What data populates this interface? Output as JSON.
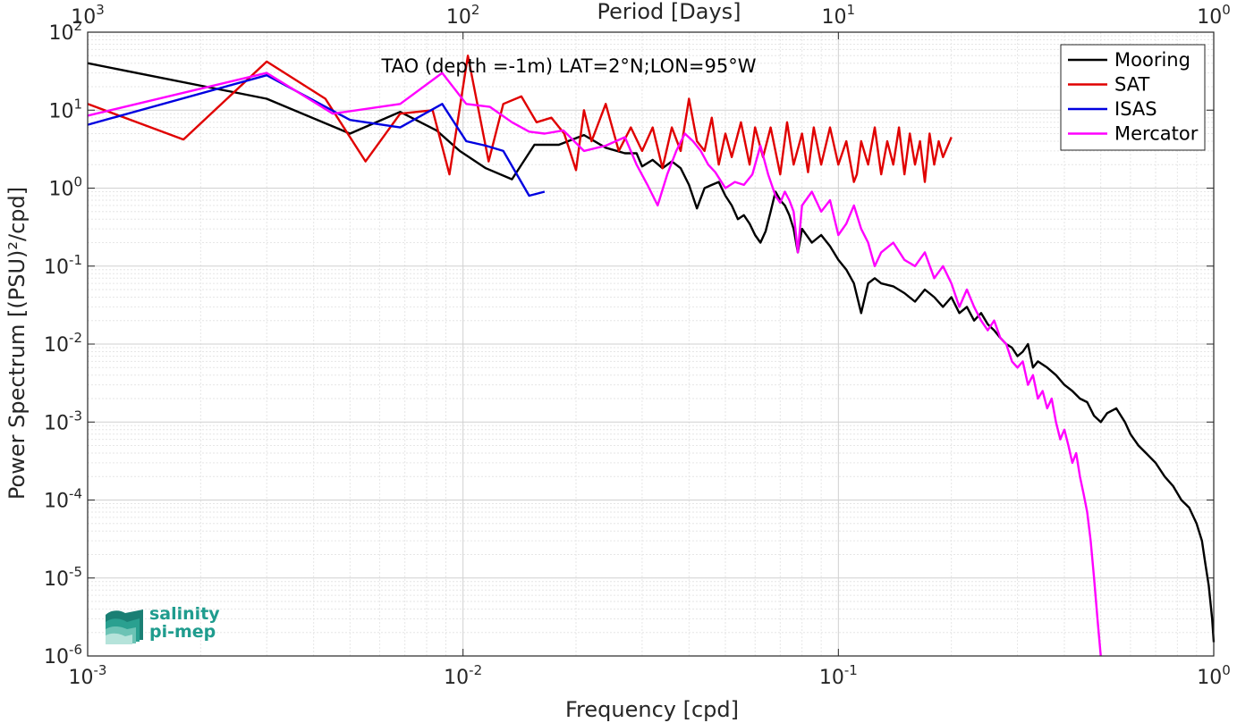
{
  "chart_data": {
    "type": "line",
    "title": "TAO (depth =-1m) LAT=2°N;LON=95°W",
    "xlabel": "Frequency [cpd]",
    "ylabel": "Power Spectrum [(PSU)²/cpd]",
    "top_xlabel": "Period [Days]",
    "xscale": "log",
    "yscale": "log",
    "xlim": [
      0.001,
      1
    ],
    "ylim": [
      1e-06,
      100
    ],
    "grid": true,
    "legend_position": "top-right",
    "x_tick_mantissa": [
      "10",
      "10",
      "10",
      "10"
    ],
    "x_tick_exponents": [
      "-3",
      "-2",
      "-1",
      "0"
    ],
    "top_tick_mantissa": [
      "10",
      "10",
      "10",
      "10"
    ],
    "top_tick_exponents": [
      "3",
      "2",
      "1",
      "0"
    ],
    "y_tick_mantissa": [
      "10",
      "10",
      "10",
      "10",
      "10",
      "10",
      "10",
      "10",
      "10"
    ],
    "y_tick_exponents": [
      "-6",
      "-5",
      "-4",
      "-3",
      "-2",
      "-1",
      "0",
      "1",
      "2"
    ],
    "series": [
      {
        "name": "Mooring",
        "color": "#000000",
        "points": [
          [
            0.001,
            40
          ],
          [
            0.003,
            14
          ],
          [
            0.005,
            5
          ],
          [
            0.0068,
            9.5
          ],
          [
            0.0085,
            5.5
          ],
          [
            0.0098,
            3
          ],
          [
            0.0115,
            1.8
          ],
          [
            0.0135,
            1.3
          ],
          [
            0.0155,
            3.6
          ],
          [
            0.018,
            3.6
          ],
          [
            0.021,
            4.8
          ],
          [
            0.024,
            3.3
          ],
          [
            0.027,
            2.8
          ],
          [
            0.029,
            2.8
          ],
          [
            0.03,
            1.9
          ],
          [
            0.032,
            2.3
          ],
          [
            0.034,
            1.8
          ],
          [
            0.036,
            2.2
          ],
          [
            0.038,
            1.8
          ],
          [
            0.04,
            1.1
          ],
          [
            0.042,
            0.55
          ],
          [
            0.044,
            1
          ],
          [
            0.046,
            1.1
          ],
          [
            0.048,
            1.2
          ],
          [
            0.05,
            0.8
          ],
          [
            0.052,
            0.6
          ],
          [
            0.054,
            0.4
          ],
          [
            0.056,
            0.45
          ],
          [
            0.058,
            0.35
          ],
          [
            0.06,
            0.25
          ],
          [
            0.062,
            0.2
          ],
          [
            0.064,
            0.28
          ],
          [
            0.066,
            0.5
          ],
          [
            0.068,
            0.9
          ],
          [
            0.07,
            0.7
          ],
          [
            0.072,
            0.6
          ],
          [
            0.074,
            0.45
          ],
          [
            0.076,
            0.3
          ],
          [
            0.078,
            0.15
          ],
          [
            0.08,
            0.3
          ],
          [
            0.085,
            0.2
          ],
          [
            0.09,
            0.25
          ],
          [
            0.095,
            0.18
          ],
          [
            0.1,
            0.12
          ],
          [
            0.105,
            0.09
          ],
          [
            0.11,
            0.06
          ],
          [
            0.115,
            0.025
          ],
          [
            0.12,
            0.06
          ],
          [
            0.125,
            0.07
          ],
          [
            0.13,
            0.06
          ],
          [
            0.14,
            0.055
          ],
          [
            0.15,
            0.045
          ],
          [
            0.16,
            0.035
          ],
          [
            0.17,
            0.05
          ],
          [
            0.18,
            0.04
          ],
          [
            0.19,
            0.03
          ],
          [
            0.2,
            0.04
          ],
          [
            0.21,
            0.025
          ],
          [
            0.22,
            0.03
          ],
          [
            0.23,
            0.02
          ],
          [
            0.24,
            0.025
          ],
          [
            0.25,
            0.018
          ],
          [
            0.26,
            0.015
          ],
          [
            0.27,
            0.012
          ],
          [
            0.28,
            0.01
          ],
          [
            0.29,
            0.009
          ],
          [
            0.3,
            0.007
          ],
          [
            0.31,
            0.008
          ],
          [
            0.32,
            0.01
          ],
          [
            0.33,
            0.005
          ],
          [
            0.34,
            0.006
          ],
          [
            0.36,
            0.005
          ],
          [
            0.38,
            0.004
          ],
          [
            0.4,
            0.003
          ],
          [
            0.42,
            0.0025
          ],
          [
            0.44,
            0.002
          ],
          [
            0.46,
            0.0018
          ],
          [
            0.48,
            0.0012
          ],
          [
            0.5,
            0.001
          ],
          [
            0.52,
            0.0013
          ],
          [
            0.55,
            0.0015
          ],
          [
            0.58,
            0.001
          ],
          [
            0.6,
            0.0007
          ],
          [
            0.63,
            0.0005
          ],
          [
            0.66,
            0.0004
          ],
          [
            0.7,
            0.0003
          ],
          [
            0.74,
            0.0002
          ],
          [
            0.78,
            0.00015
          ],
          [
            0.82,
            0.0001
          ],
          [
            0.86,
            8e-05
          ],
          [
            0.9,
            5e-05
          ],
          [
            0.93,
            3e-05
          ],
          [
            0.95,
            1.5e-05
          ],
          [
            0.97,
            8e-06
          ],
          [
            0.99,
            3e-06
          ],
          [
            1,
            1.5e-06
          ]
        ]
      },
      {
        "name": "SAT",
        "color": "#e00000",
        "points": [
          [
            0.001,
            12
          ],
          [
            0.0018,
            4.2
          ],
          [
            0.003,
            42
          ],
          [
            0.0043,
            14
          ],
          [
            0.0055,
            2.2
          ],
          [
            0.0068,
            9
          ],
          [
            0.0083,
            10
          ],
          [
            0.0092,
            1.5
          ],
          [
            0.0103,
            50
          ],
          [
            0.0117,
            2.2
          ],
          [
            0.0128,
            12
          ],
          [
            0.0143,
            15
          ],
          [
            0.0157,
            7
          ],
          [
            0.0172,
            8
          ],
          [
            0.0186,
            5
          ],
          [
            0.02,
            1.7
          ],
          [
            0.021,
            10
          ],
          [
            0.022,
            4
          ],
          [
            0.024,
            12
          ],
          [
            0.026,
            3
          ],
          [
            0.028,
            6
          ],
          [
            0.03,
            3
          ],
          [
            0.032,
            6
          ],
          [
            0.034,
            1.8
          ],
          [
            0.036,
            6
          ],
          [
            0.038,
            3
          ],
          [
            0.04,
            14
          ],
          [
            0.042,
            4
          ],
          [
            0.044,
            3
          ],
          [
            0.046,
            8
          ],
          [
            0.048,
            2
          ],
          [
            0.05,
            5
          ],
          [
            0.052,
            2.5
          ],
          [
            0.055,
            7
          ],
          [
            0.058,
            2
          ],
          [
            0.06,
            6
          ],
          [
            0.063,
            2.5
          ],
          [
            0.066,
            6
          ],
          [
            0.07,
            1.5
          ],
          [
            0.073,
            7
          ],
          [
            0.076,
            2
          ],
          [
            0.08,
            5
          ],
          [
            0.083,
            1.6
          ],
          [
            0.086,
            6
          ],
          [
            0.09,
            2
          ],
          [
            0.095,
            6
          ],
          [
            0.1,
            2
          ],
          [
            0.105,
            4
          ],
          [
            0.11,
            1.2
          ],
          [
            0.112,
            1.5
          ],
          [
            0.115,
            4
          ],
          [
            0.12,
            2
          ],
          [
            0.125,
            6
          ],
          [
            0.13,
            1.5
          ],
          [
            0.135,
            4
          ],
          [
            0.14,
            2
          ],
          [
            0.145,
            6
          ],
          [
            0.15,
            1.5
          ],
          [
            0.155,
            5
          ],
          [
            0.16,
            2
          ],
          [
            0.165,
            4
          ],
          [
            0.17,
            1.2
          ],
          [
            0.175,
            5
          ],
          [
            0.18,
            2
          ],
          [
            0.185,
            4
          ],
          [
            0.19,
            2.5
          ],
          [
            0.2,
            4.5
          ]
        ]
      },
      {
        "name": "ISAS",
        "color": "#0000e0",
        "points": [
          [
            0.001,
            6.5
          ],
          [
            0.003,
            28
          ],
          [
            0.005,
            7.5
          ],
          [
            0.0068,
            6
          ],
          [
            0.0088,
            12
          ],
          [
            0.0102,
            4
          ],
          [
            0.0115,
            3.5
          ],
          [
            0.0128,
            3
          ],
          [
            0.015,
            0.8
          ],
          [
            0.0165,
            0.9
          ]
        ]
      },
      {
        "name": "Mercator",
        "color": "#ff00ff",
        "points": [
          [
            0.001,
            8.5
          ],
          [
            0.003,
            30
          ],
          [
            0.0045,
            9
          ],
          [
            0.0068,
            12
          ],
          [
            0.0088,
            30
          ],
          [
            0.0102,
            12
          ],
          [
            0.0118,
            11
          ],
          [
            0.0135,
            7
          ],
          [
            0.015,
            5.3
          ],
          [
            0.0165,
            5
          ],
          [
            0.0185,
            5.5
          ],
          [
            0.021,
            3
          ],
          [
            0.024,
            3.5
          ],
          [
            0.027,
            4.5
          ],
          [
            0.029,
            2
          ],
          [
            0.031,
            1.1
          ],
          [
            0.033,
            0.6
          ],
          [
            0.035,
            1.5
          ],
          [
            0.037,
            3
          ],
          [
            0.039,
            5
          ],
          [
            0.041,
            4
          ],
          [
            0.043,
            3
          ],
          [
            0.045,
            2
          ],
          [
            0.047,
            1.6
          ],
          [
            0.05,
            1
          ],
          [
            0.053,
            1.2
          ],
          [
            0.056,
            1.1
          ],
          [
            0.059,
            1.5
          ],
          [
            0.062,
            3.5
          ],
          [
            0.065,
            1.5
          ],
          [
            0.068,
            0.8
          ],
          [
            0.07,
            0.65
          ],
          [
            0.072,
            0.9
          ],
          [
            0.074,
            0.7
          ],
          [
            0.076,
            0.5
          ],
          [
            0.078,
            0.15
          ],
          [
            0.08,
            0.6
          ],
          [
            0.085,
            0.9
          ],
          [
            0.09,
            0.5
          ],
          [
            0.095,
            0.7
          ],
          [
            0.1,
            0.25
          ],
          [
            0.105,
            0.35
          ],
          [
            0.11,
            0.6
          ],
          [
            0.115,
            0.3
          ],
          [
            0.12,
            0.2
          ],
          [
            0.125,
            0.1
          ],
          [
            0.13,
            0.15
          ],
          [
            0.14,
            0.2
          ],
          [
            0.15,
            0.12
          ],
          [
            0.16,
            0.1
          ],
          [
            0.17,
            0.15
          ],
          [
            0.18,
            0.07
          ],
          [
            0.19,
            0.1
          ],
          [
            0.2,
            0.06
          ],
          [
            0.21,
            0.03
          ],
          [
            0.22,
            0.05
          ],
          [
            0.23,
            0.03
          ],
          [
            0.24,
            0.02
          ],
          [
            0.25,
            0.015
          ],
          [
            0.26,
            0.02
          ],
          [
            0.27,
            0.012
          ],
          [
            0.28,
            0.01
          ],
          [
            0.29,
            0.006
          ],
          [
            0.3,
            0.005
          ],
          [
            0.31,
            0.006
          ],
          [
            0.32,
            0.003
          ],
          [
            0.33,
            0.004
          ],
          [
            0.34,
            0.002
          ],
          [
            0.35,
            0.0025
          ],
          [
            0.36,
            0.0015
          ],
          [
            0.37,
            0.002
          ],
          [
            0.38,
            0.001
          ],
          [
            0.39,
            0.0006
          ],
          [
            0.4,
            0.0008
          ],
          [
            0.41,
            0.0005
          ],
          [
            0.42,
            0.0003
          ],
          [
            0.43,
            0.0004
          ],
          [
            0.44,
            0.0002
          ],
          [
            0.45,
            0.00012
          ],
          [
            0.46,
            7e-05
          ],
          [
            0.47,
            3e-05
          ],
          [
            0.48,
            1e-05
          ],
          [
            0.49,
            3e-06
          ],
          [
            0.5,
            1e-06
          ]
        ]
      }
    ]
  },
  "logo": {
    "line1": "salinity",
    "line2": "pi-mep"
  }
}
